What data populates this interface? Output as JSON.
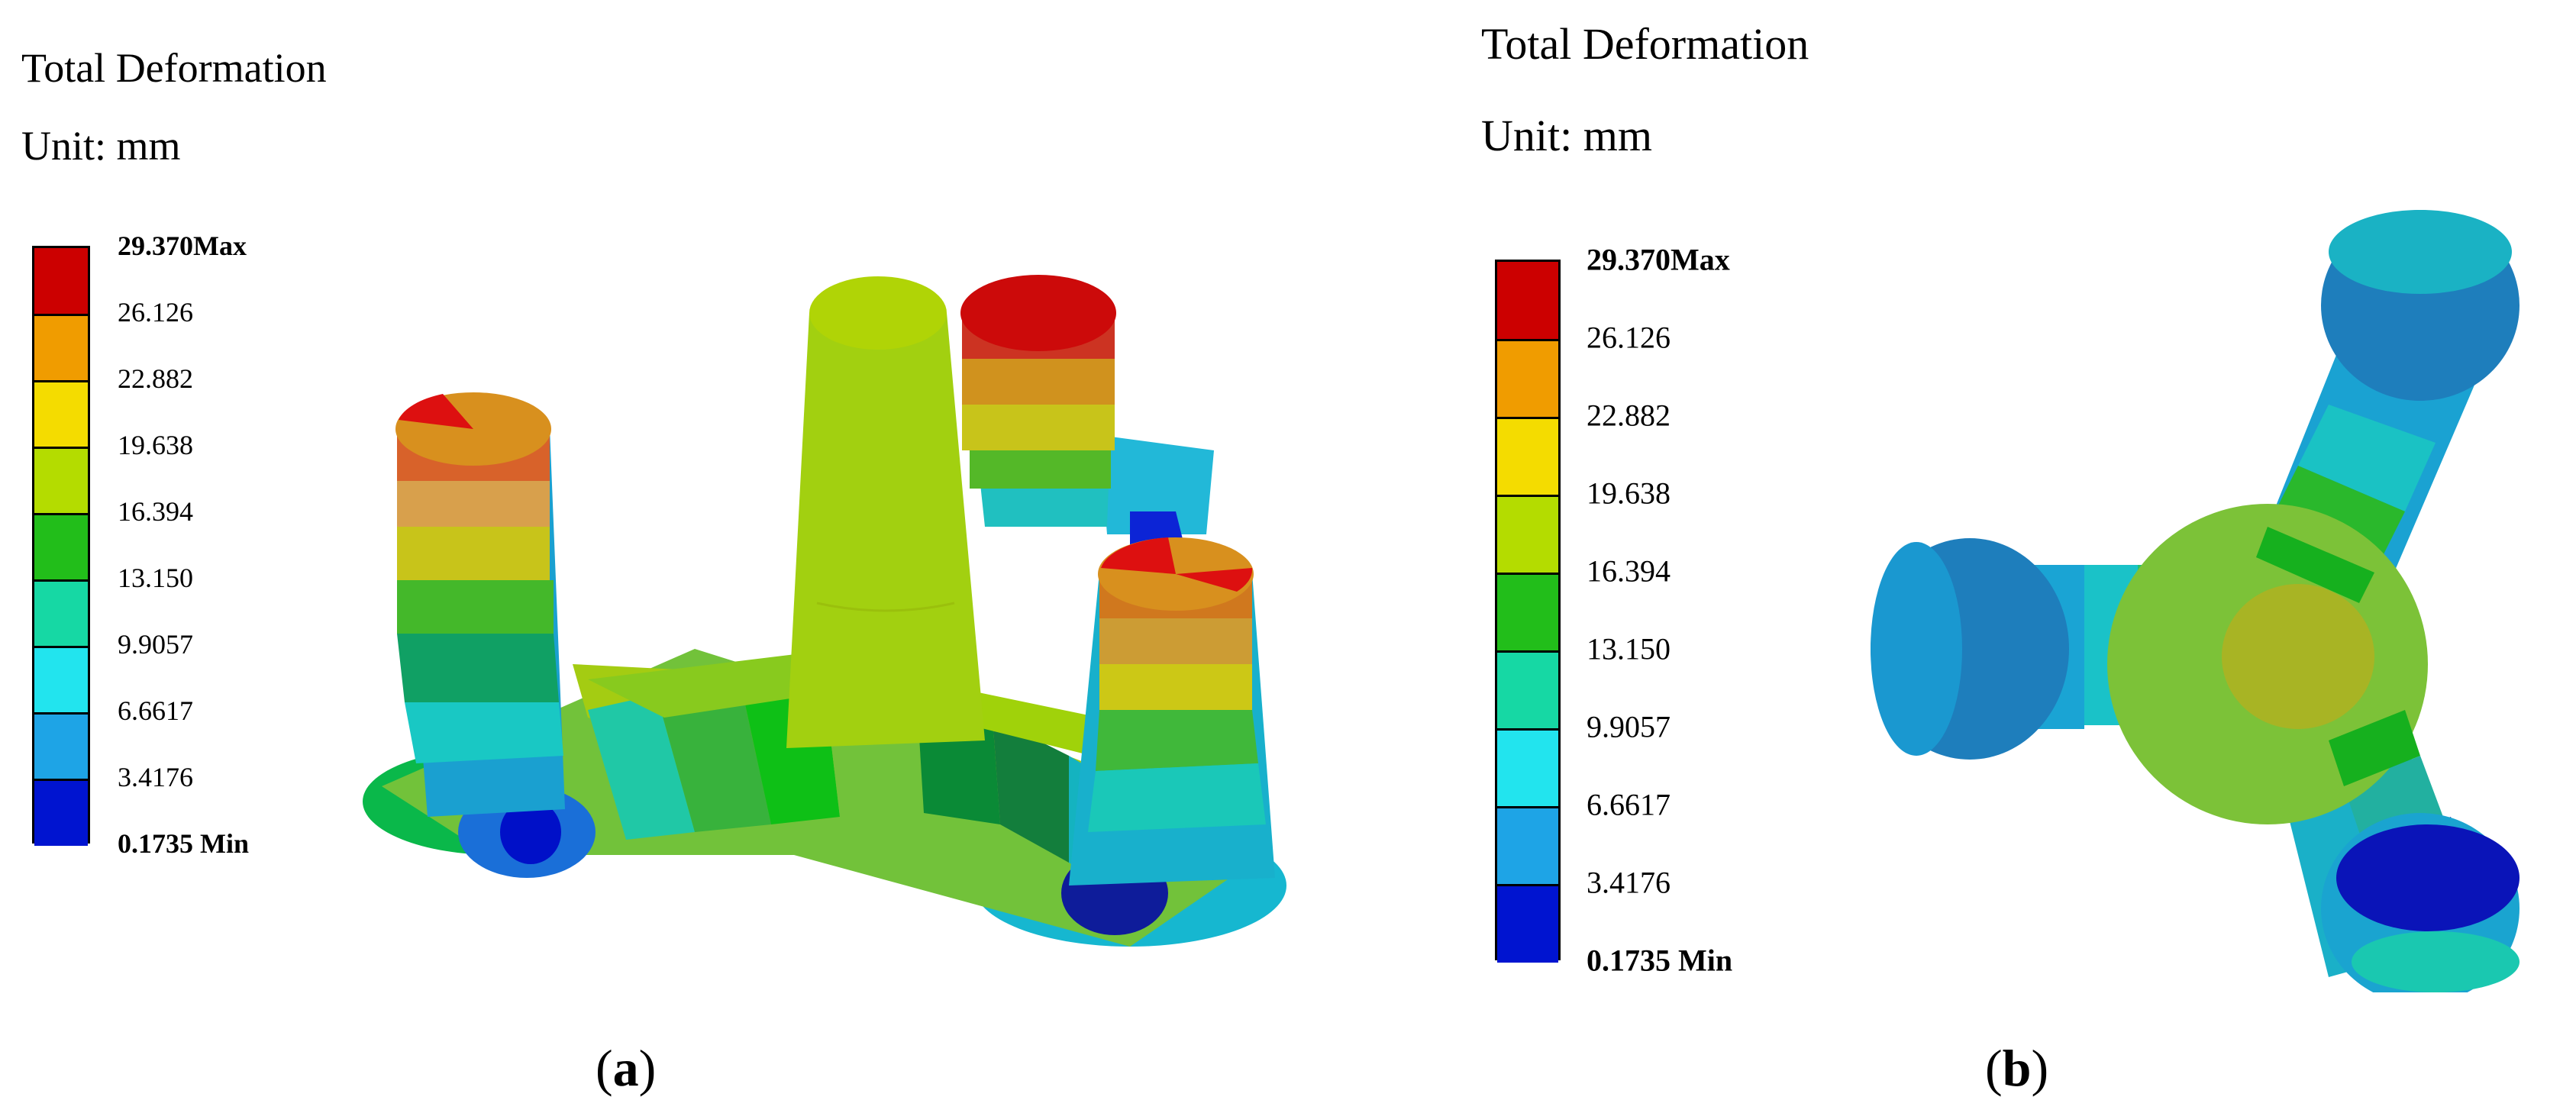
{
  "legend_colors": [
    "#cc0000",
    "#f09c00",
    "#f4dc00",
    "#b4dc00",
    "#22be1a",
    "#16d8a4",
    "#22e4ee",
    "#1ea4e6",
    "#0014d0"
  ],
  "panels": [
    {
      "id": "a",
      "title": "Total Deformation",
      "unit": "Unit: mm",
      "caption_letter": "a",
      "legend": [
        "29.370Max",
        "26.126",
        "22.882",
        "19.638",
        "16.394",
        "13.150",
        "9.9057",
        "6.6617",
        "3.4176",
        "0.1735 Min"
      ]
    },
    {
      "id": "b",
      "title": "Total Deformation",
      "unit": "Unit: mm",
      "caption_letter": "b",
      "legend": [
        "29.370Max",
        "26.126",
        "22.882",
        "19.638",
        "16.394",
        "13.150",
        "9.9057",
        "6.6617",
        "3.4176",
        "0.1735 Min"
      ]
    }
  ]
}
